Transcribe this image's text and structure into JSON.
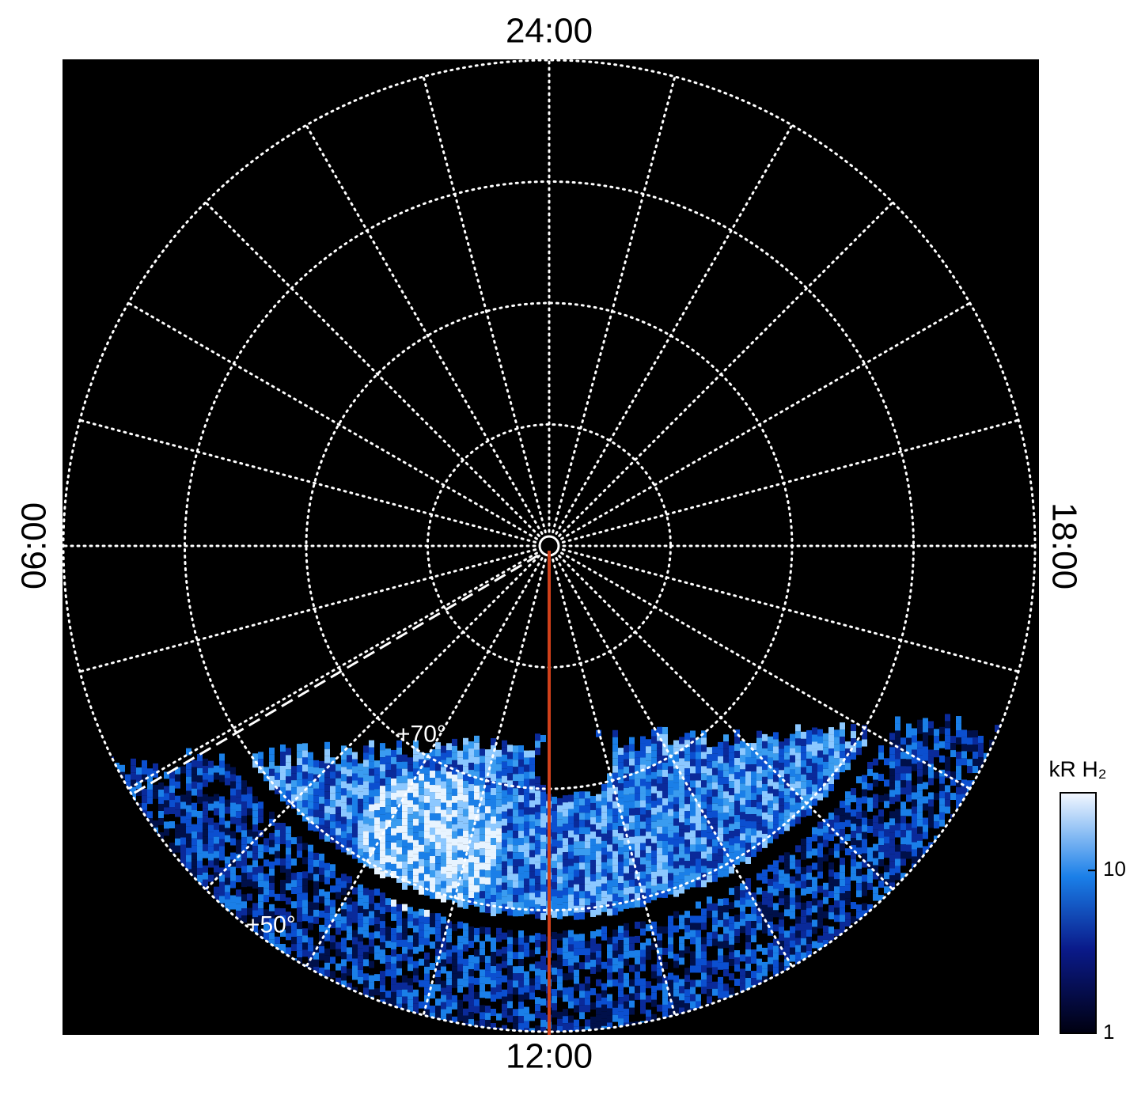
{
  "chart_data": {
    "type": "polar",
    "theta_ticks": [
      {
        "value": 24,
        "label": "24:00"
      },
      {
        "value": 6,
        "label": "06:00"
      },
      {
        "value": 12,
        "label": "12:00"
      },
      {
        "value": 18,
        "label": "18:00"
      }
    ],
    "rlim": [
      90,
      50
    ],
    "rticks": [
      80,
      {
        "value": 70,
        "label": "+70°"
      },
      60,
      {
        "value": 50,
        "label": "+50°"
      }
    ],
    "grid": true,
    "colorbar": {
      "title": "kR H₂",
      "log": true,
      "clim": [
        1,
        30
      ],
      "ticks": [
        1,
        10
      ]
    }
  }
}
